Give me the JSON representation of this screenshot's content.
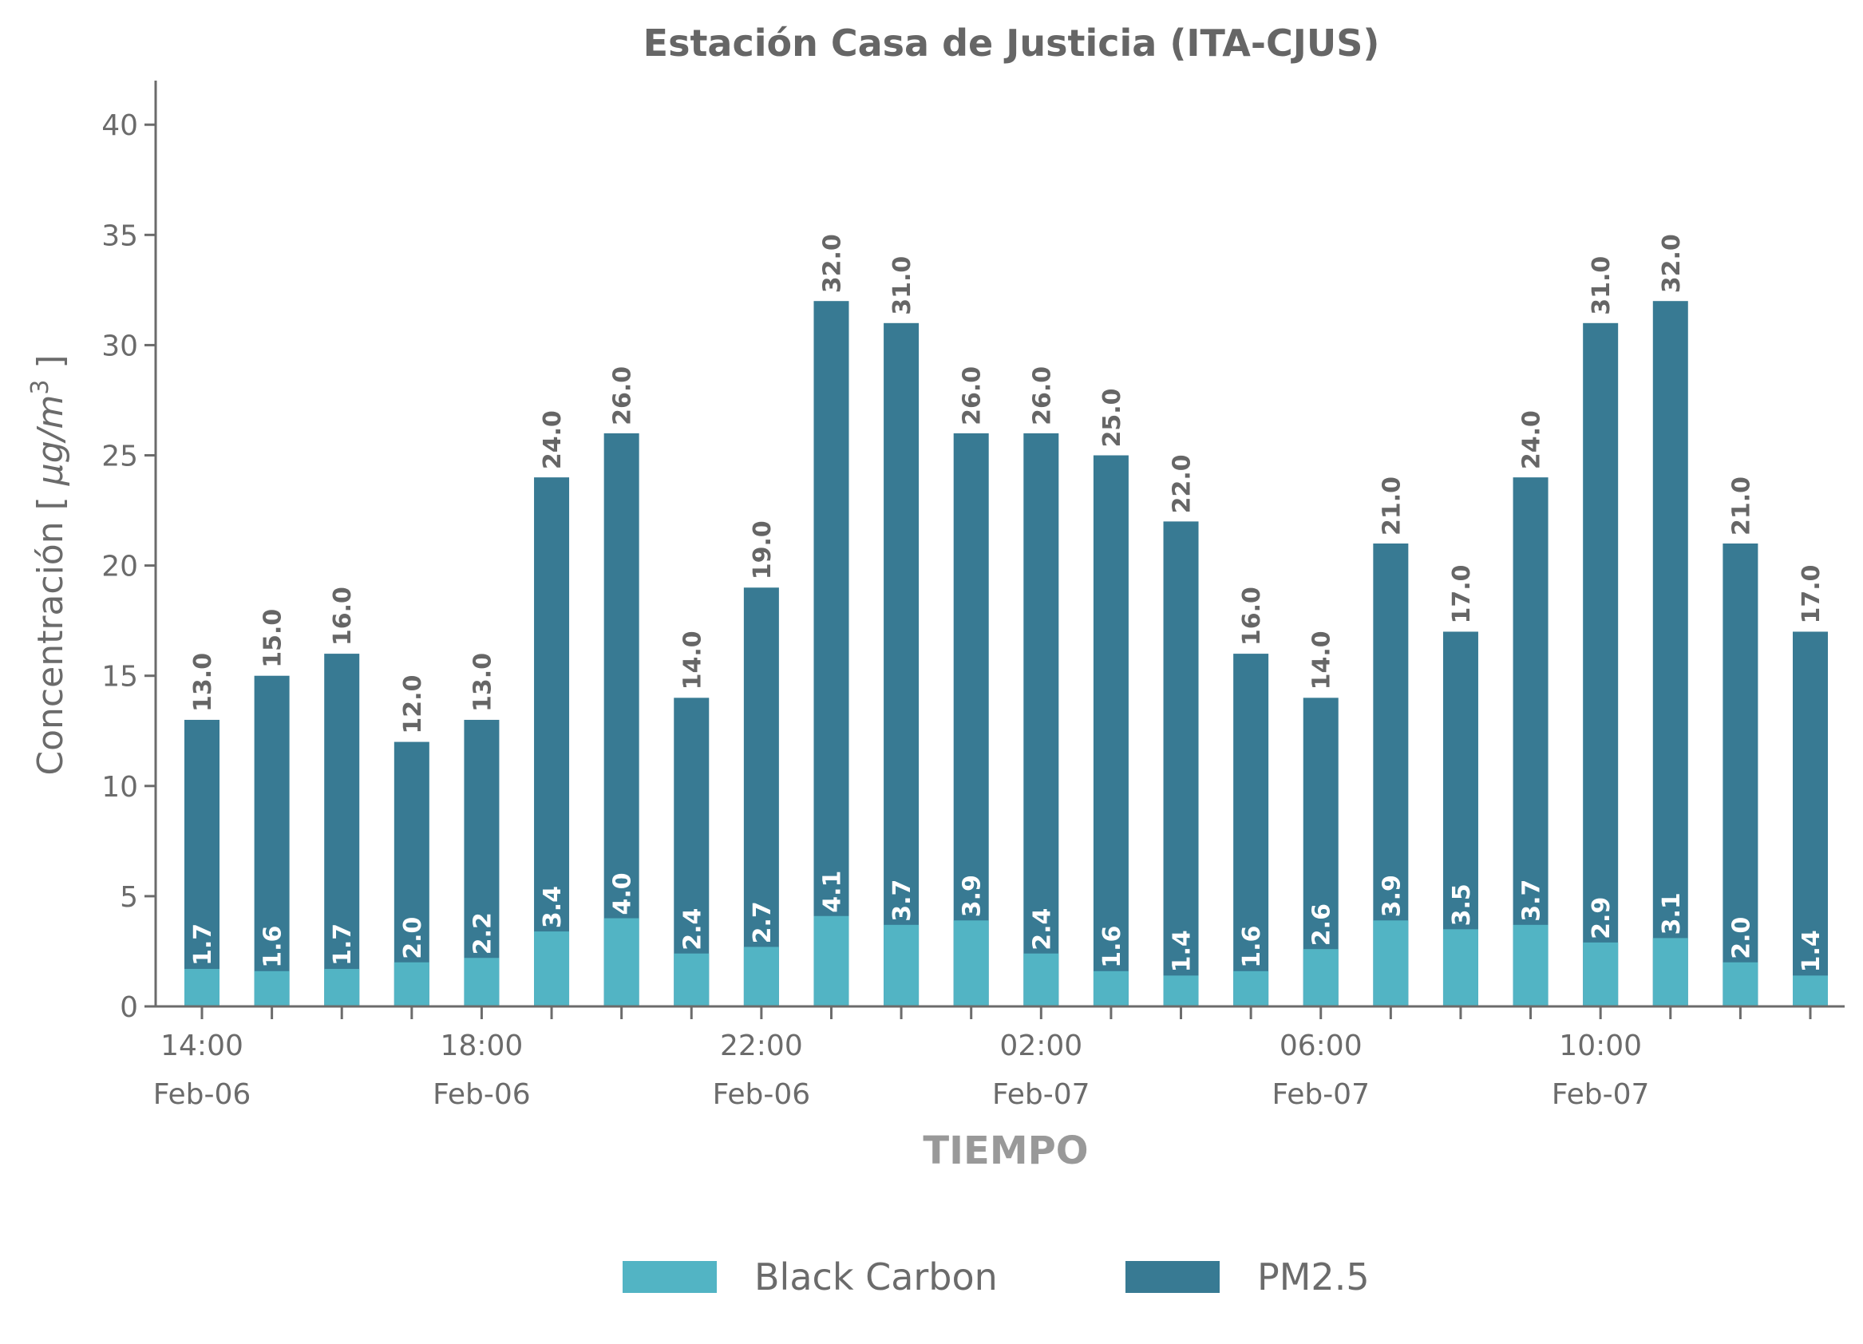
{
  "chart_data": {
    "type": "bar",
    "title": "Estación Casa de Justicia (ITA-CJUS)",
    "xlabel": "TIEMPO",
    "ylabel": "Concentración  [ μg/m³ ]",
    "ylabel_parts": {
      "text": "Concentración  [ ",
      "unit": "μg/m",
      "exp": "3",
      "close": " ]"
    },
    "ylim": [
      0,
      42
    ],
    "yticks": [
      0,
      5,
      10,
      15,
      20,
      25,
      30,
      35,
      40
    ],
    "bar_mode": "overlay",
    "categories": [
      "14:00 Feb-06",
      "15:00 Feb-06",
      "16:00 Feb-06",
      "17:00 Feb-06",
      "18:00 Feb-06",
      "19:00 Feb-06",
      "20:00 Feb-06",
      "21:00 Feb-06",
      "22:00 Feb-06",
      "23:00 Feb-06",
      "00:00 Feb-07",
      "01:00 Feb-07",
      "02:00 Feb-07",
      "03:00 Feb-07",
      "04:00 Feb-07",
      "05:00 Feb-07",
      "06:00 Feb-07",
      "07:00 Feb-07",
      "08:00 Feb-07",
      "09:00 Feb-07",
      "10:00 Feb-07",
      "11:00 Feb-07",
      "12:00 Feb-07",
      "13:00 Feb-07"
    ],
    "xtick_labels": [
      {
        "index": 0,
        "time": "14:00",
        "date": "Feb-06"
      },
      {
        "index": 4,
        "time": "18:00",
        "date": "Feb-06"
      },
      {
        "index": 8,
        "time": "22:00",
        "date": "Feb-06"
      },
      {
        "index": 12,
        "time": "02:00",
        "date": "Feb-07"
      },
      {
        "index": 16,
        "time": "06:00",
        "date": "Feb-07"
      },
      {
        "index": 20,
        "time": "10:00",
        "date": "Feb-07"
      }
    ],
    "series": [
      {
        "name": "PM2.5",
        "color": "#387a93",
        "values": [
          13,
          15,
          16,
          12,
          13,
          24,
          26,
          14,
          19,
          32,
          31,
          26,
          26,
          25,
          22,
          16,
          14,
          21,
          17,
          24,
          31,
          32,
          21,
          17
        ]
      },
      {
        "name": "Black Carbon",
        "color": "#52b4c4",
        "values": [
          1.7,
          1.6,
          1.7,
          2.0,
          2.2,
          3.4,
          4.0,
          2.4,
          2.7,
          4.1,
          3.7,
          3.9,
          2.4,
          1.6,
          1.4,
          1.6,
          2.6,
          3.9,
          3.5,
          3.7,
          2.9,
          3.1,
          2.0,
          1.4
        ]
      }
    ],
    "legend": {
      "placement": "bottom",
      "order": [
        "Black Carbon",
        "PM2.5"
      ]
    },
    "grid": false
  }
}
